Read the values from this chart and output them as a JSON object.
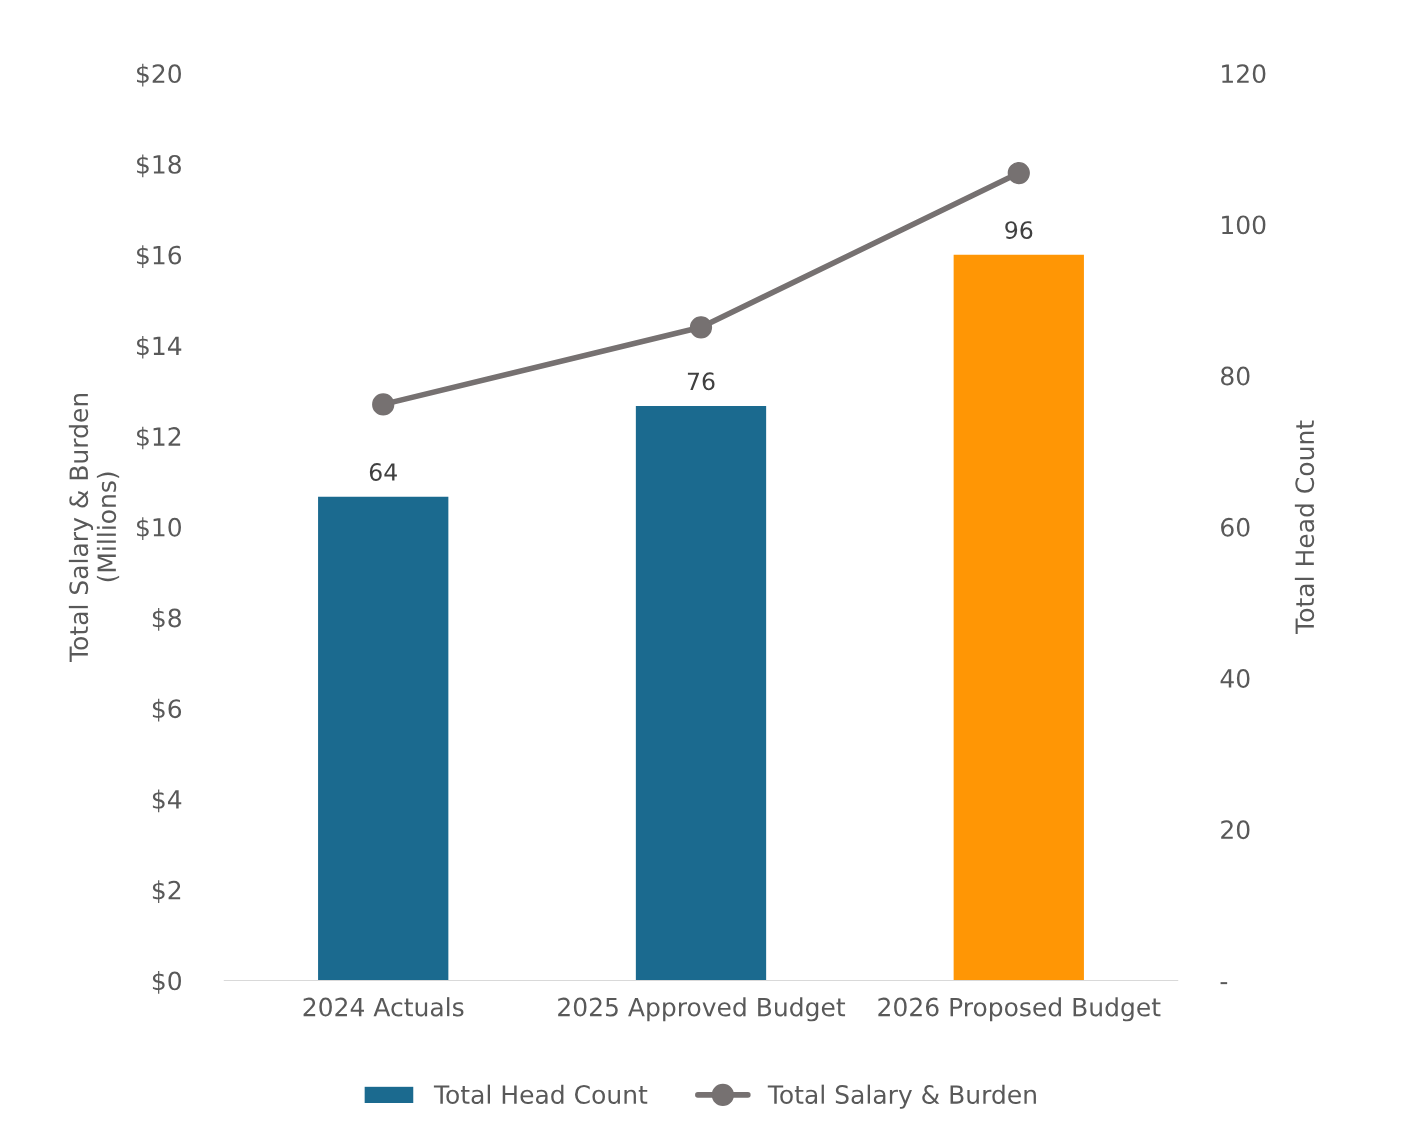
{
  "chart_data": {
    "type": "bar",
    "categories": [
      "2024 Actuals",
      "2025 Approved Budget",
      "2026 Proposed Budget"
    ],
    "ylabel": "Total Salary & Burden\n(Millions)",
    "y2label": "Total Head Count",
    "series": [
      {
        "name": "Total Head Count",
        "axis": "y2",
        "color": "#1b6a8f",
        "colors": [
          "#1b6a8f",
          "#1b6a8f",
          "#ff9605"
        ],
        "values": [
          64,
          76,
          96
        ],
        "value_labels": [
          "64",
          "76",
          "96"
        ]
      },
      {
        "name": "Total Salary & Burden",
        "type": "line",
        "color": "#767171",
        "marker": "circle",
        "values": [
          12.7,
          14.4,
          17.8
        ]
      }
    ],
    "ylim": [
      0,
      20
    ],
    "yticks": [
      {
        "value": 0,
        "label": "$0"
      },
      {
        "value": 2,
        "label": "$2"
      },
      {
        "value": 4,
        "label": "$4"
      },
      {
        "value": 6,
        "label": "$6"
      },
      {
        "value": 8,
        "label": "$8"
      },
      {
        "value": 10,
        "label": "$10"
      },
      {
        "value": 12,
        "label": "$12"
      },
      {
        "value": 14,
        "label": "$14"
      },
      {
        "value": 16,
        "label": "$16"
      },
      {
        "value": 18,
        "label": "$18"
      },
      {
        "value": 20,
        "label": "$20"
      }
    ],
    "y2lim": [
      0,
      120
    ],
    "y2ticks": [
      {
        "value": 0,
        "label": "-"
      },
      20,
      40,
      60,
      80,
      100,
      120
    ],
    "grid": false,
    "legend": "bottom"
  }
}
